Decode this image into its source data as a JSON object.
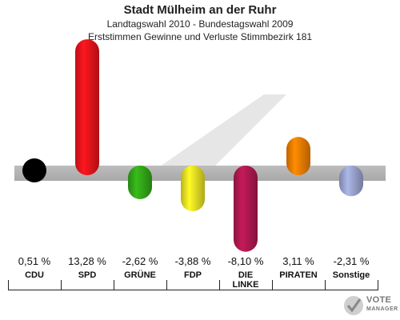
{
  "header": {
    "title": "Stadt Mülheim an der Ruhr",
    "subtitle1": "Landtagswahl 2010 - Bundestagswahl 2009",
    "subtitle2": "Erststimmen Gewinne und Verluste Stimmbezirk 181"
  },
  "chart_data": {
    "type": "bar",
    "categories": [
      "CDU",
      "SPD",
      "GRÜNE",
      "FDP",
      "DIE LINKE",
      "PIRATEN",
      "Sonstige"
    ],
    "values": [
      0.51,
      13.28,
      -2.62,
      -3.88,
      -8.1,
      3.11,
      -2.31
    ],
    "value_labels": [
      "0,51 %",
      "13,28 %",
      "-2,62 %",
      "-3,88 %",
      "-8,10 %",
      "3,11 %",
      "-2,31 %"
    ],
    "colors": [
      "#000000",
      "#e8141b",
      "#32a818",
      "#e8e022",
      "#b01850",
      "#f07d00",
      "#9aa4cf"
    ],
    "baseline": 0
  },
  "logo": {
    "line1": "VOTE",
    "line2": "MANAGER"
  }
}
